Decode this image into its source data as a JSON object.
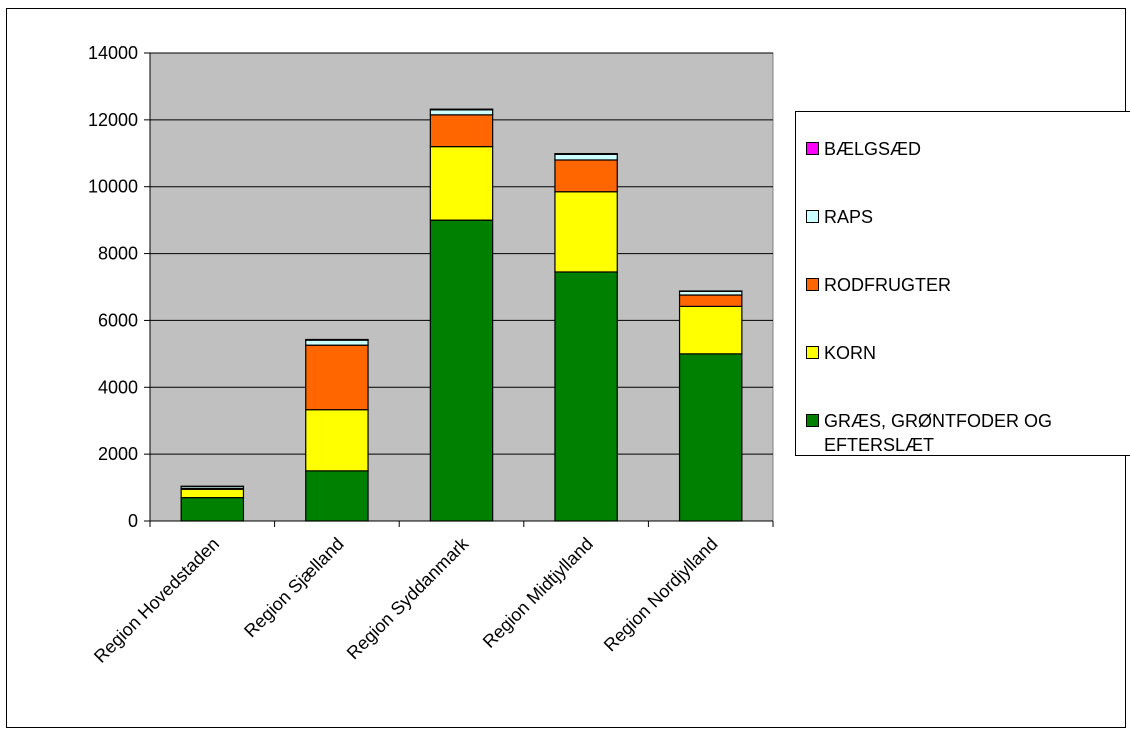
{
  "chart_data": {
    "type": "bar",
    "stacked": true,
    "categories": [
      "Region Hovedstaden",
      "Region Sjælland",
      "Region Syddanmark",
      "Region Midtjylland",
      "Region Nordjylland"
    ],
    "series": [
      {
        "name": "GRÆS, GRØNTFODER OG EFTERSLÆT",
        "color": "#008000",
        "values": [
          700,
          1500,
          9000,
          7450,
          5000
        ]
      },
      {
        "name": "KORN",
        "color": "#FFFF00",
        "values": [
          250,
          1830,
          2200,
          2400,
          1420
        ]
      },
      {
        "name": "RODFRUGTER",
        "color": "#FF6600",
        "values": [
          20,
          1930,
          950,
          950,
          340
        ]
      },
      {
        "name": "RAPS",
        "color": "#CCFFFF",
        "values": [
          60,
          150,
          150,
          170,
          110
        ]
      },
      {
        "name": "BÆLGSÆD",
        "color": "#FF00FF",
        "values": [
          10,
          20,
          20,
          20,
          10
        ]
      }
    ],
    "ylim": [
      0,
      14000
    ],
    "yticks": [
      0,
      2000,
      4000,
      6000,
      8000,
      10000,
      12000,
      14000
    ],
    "title": "",
    "xlabel": "",
    "ylabel": "",
    "grid": true,
    "plot_background": "#C0C0C0",
    "legend_position": "right",
    "legend_order": [
      "BÆLGSÆD",
      "RAPS",
      "RODFRUGTER",
      "KORN",
      "GRÆS, GRØNTFODER OG EFTERSLÆT"
    ]
  }
}
